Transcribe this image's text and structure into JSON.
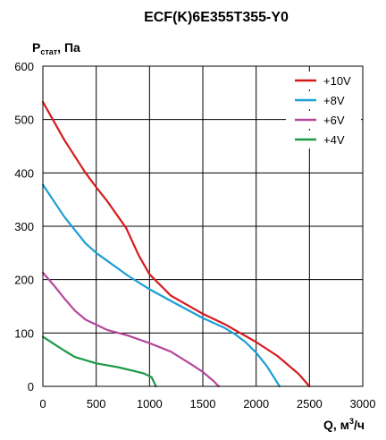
{
  "chart_data": {
    "type": "line",
    "title": "ECF(K)6E355T355-Y0",
    "ylabel": {
      "main": "P",
      "sub": "стат",
      "unit": ", Па"
    },
    "xlabel": {
      "main": "Q, м",
      "sup": "3",
      "unit": "/ч"
    },
    "xlim": [
      0,
      3000
    ],
    "ylim": [
      0,
      600
    ],
    "x_ticks": [
      "0",
      "500",
      "1000",
      "1500",
      "2000",
      "2500",
      "3000"
    ],
    "y_ticks": [
      "0",
      "100",
      "200",
      "300",
      "400",
      "500",
      "600"
    ],
    "grid": true,
    "legend": "top-right",
    "series": [
      {
        "name": "+10V",
        "color": "#d7191c",
        "x": [
          0,
          200,
          400,
          500,
          600,
          780,
          900,
          1000,
          1200,
          1500,
          1700,
          1850,
          2000,
          2200,
          2400,
          2500
        ],
        "y": [
          533,
          462,
          400,
          373,
          348,
          297,
          245,
          210,
          170,
          136,
          117,
          100,
          83,
          57,
          23,
          0
        ]
      },
      {
        "name": "+8V",
        "color": "#1a9fd6",
        "x": [
          0,
          200,
          400,
          500,
          800,
          1000,
          1200,
          1500,
          1700,
          1800,
          1900,
          2000,
          2100,
          2220
        ],
        "y": [
          378,
          318,
          268,
          250,
          207,
          182,
          160,
          128,
          110,
          98,
          83,
          63,
          38,
          0
        ]
      },
      {
        "name": "+6V",
        "color": "#b5489c",
        "x": [
          0,
          100,
          200,
          300,
          400,
          600,
          800,
          1000,
          1200,
          1400,
          1500,
          1600,
          1650
        ],
        "y": [
          213,
          190,
          165,
          142,
          125,
          106,
          95,
          81,
          65,
          40,
          27,
          10,
          0
        ]
      },
      {
        "name": "+4V",
        "color": "#1a9a45",
        "x": [
          0,
          100,
          200,
          300,
          500,
          700,
          850,
          950,
          1020,
          1060
        ],
        "y": [
          93,
          80,
          67,
          55,
          43,
          36,
          29,
          24,
          17,
          0
        ]
      }
    ]
  }
}
